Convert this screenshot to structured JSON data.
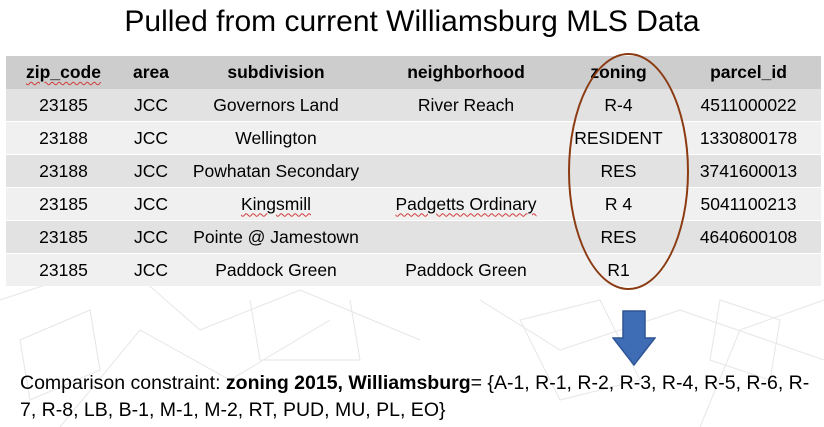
{
  "title": "Pulled from current Williamsburg MLS Data",
  "table": {
    "headers": [
      "zip_code",
      "area",
      "subdivision",
      "neighborhood",
      "zoning",
      "parcel_id"
    ],
    "rows": [
      [
        "23185",
        "JCC",
        "Governors Land",
        "River Reach",
        "R-4",
        "4511000022"
      ],
      [
        "23188",
        "JCC",
        "Wellington",
        "",
        "RESIDENT",
        "1330800178"
      ],
      [
        "23188",
        "JCC",
        "Powhatan Secondary",
        "",
        "RES",
        "3741600013"
      ],
      [
        "23185",
        "JCC",
        "Kingsmill",
        "Padgetts Ordinary",
        "R 4",
        "5041100213"
      ],
      [
        "23185",
        "JCC",
        "Pointe @ Jamestown",
        "",
        "RES",
        "4640600108"
      ],
      [
        "23185",
        "JCC",
        "Paddock Green",
        "Paddock Green",
        "R1",
        ""
      ]
    ]
  },
  "constraint": {
    "prefix": "Comparison constraint: ",
    "bold": "zoning 2015, Williamsburg",
    "suffix": "= {A-1, R-1, R-2, R-3, R-4, R-5, R-6, R-7, R-8, LB, B-1, M-1, M-2, RT, PUD, MU, PL, EO}"
  },
  "colors": {
    "oval": "#8b3a12",
    "arrow": "#3f6db5"
  }
}
